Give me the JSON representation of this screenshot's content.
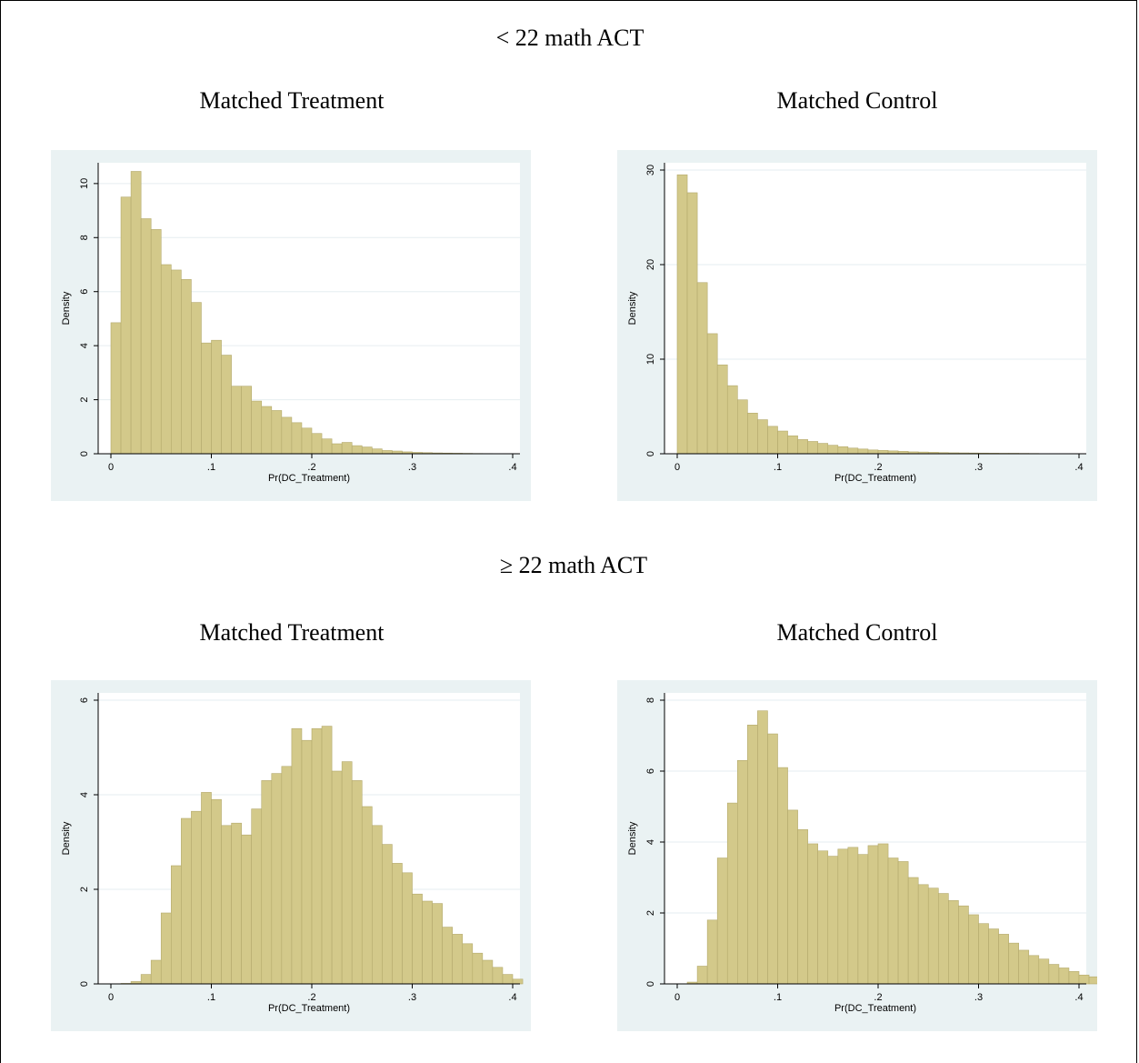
{
  "sections": [
    {
      "title": "< 22 math ACT",
      "panel_titles": [
        "Matched Treatment",
        "Matched Control"
      ]
    },
    {
      "title": "≥ 22 math ACT",
      "panel_titles": [
        "Matched Treatment",
        "Matched Control"
      ]
    }
  ],
  "colors": {
    "bar_fill": "#d3c98a",
    "bar_stroke": "#b3a96c",
    "panel_background": "#eaf2f3",
    "plot_background": "#ffffff",
    "gridline": "#e6eef0"
  },
  "chart_data": [
    {
      "type": "bar",
      "subtype": "histogram",
      "title": "Matched Treatment",
      "xlabel": "Pr(DC_Treatment)",
      "ylabel": "Density",
      "xlim": [
        0,
        0.4
      ],
      "ylim": [
        0,
        10.5
      ],
      "xticks": [
        0,
        0.1,
        0.2,
        0.3,
        0.4
      ],
      "xtick_labels": [
        "0",
        ".1",
        ".2",
        ".3",
        ".4"
      ],
      "yticks": [
        0,
        2,
        4,
        6,
        8,
        10
      ],
      "ytick_labels": [
        "0",
        "2",
        "4",
        "6",
        "8",
        "10"
      ],
      "grid": true,
      "bin_start": 0,
      "bin_width": 0.01,
      "values": [
        4.85,
        9.5,
        10.45,
        8.7,
        8.3,
        7.0,
        6.8,
        6.45,
        5.6,
        4.1,
        4.2,
        3.65,
        2.5,
        2.5,
        1.95,
        1.75,
        1.6,
        1.35,
        1.15,
        0.95,
        0.75,
        0.55,
        0.37,
        0.42,
        0.3,
        0.25,
        0.18,
        0.12,
        0.1,
        0.07,
        0.05,
        0.04,
        0.03,
        0.025,
        0.02,
        0.015,
        0.01,
        0.008,
        0.005
      ]
    },
    {
      "type": "bar",
      "subtype": "histogram",
      "title": "Matched Control",
      "xlabel": "Pr(DC_Treatment)",
      "ylabel": "Density",
      "xlim": [
        0,
        0.4
      ],
      "ylim": [
        0,
        30
      ],
      "xticks": [
        0,
        0.1,
        0.2,
        0.3,
        0.4
      ],
      "xtick_labels": [
        "0",
        ".1",
        ".2",
        ".3",
        ".4"
      ],
      "yticks": [
        0,
        10,
        20,
        30
      ],
      "ytick_labels": [
        "0",
        "10",
        "20",
        "30"
      ],
      "grid": true,
      "bin_start": 0,
      "bin_width": 0.01,
      "values": [
        29.5,
        27.6,
        18.1,
        12.7,
        9.4,
        7.2,
        5.7,
        4.3,
        3.6,
        2.9,
        2.4,
        1.9,
        1.5,
        1.3,
        1.1,
        0.9,
        0.75,
        0.6,
        0.5,
        0.4,
        0.35,
        0.3,
        0.25,
        0.2,
        0.18,
        0.15,
        0.12,
        0.1,
        0.09,
        0.08,
        0.07,
        0.06,
        0.05,
        0.05,
        0.04,
        0.03
      ]
    },
    {
      "type": "bar",
      "subtype": "histogram",
      "title": "Matched Treatment",
      "xlabel": "Pr(DC_Treatment)",
      "ylabel": "Density",
      "xlim": [
        0,
        0.4
      ],
      "ylim": [
        0,
        6
      ],
      "xticks": [
        0,
        0.1,
        0.2,
        0.3,
        0.4
      ],
      "xtick_labels": [
        "0",
        ".1",
        ".2",
        ".3",
        ".4"
      ],
      "yticks": [
        0,
        2,
        4,
        6
      ],
      "ytick_labels": [
        "0",
        "2",
        "4",
        "6"
      ],
      "grid": true,
      "bin_start": 0.01,
      "bin_width": 0.01,
      "values": [
        0.01,
        0.05,
        0.2,
        0.5,
        1.5,
        2.5,
        3.5,
        3.65,
        4.05,
        3.9,
        3.35,
        3.4,
        3.15,
        3.7,
        4.3,
        4.45,
        4.6,
        5.4,
        5.15,
        5.4,
        5.45,
        4.5,
        4.7,
        4.3,
        3.75,
        3.35,
        2.95,
        2.55,
        2.35,
        1.9,
        1.75,
        1.7,
        1.2,
        1.05,
        0.85,
        0.65,
        0.5,
        0.35,
        0.2,
        0.1
      ]
    },
    {
      "type": "bar",
      "subtype": "histogram",
      "title": "Matched Control",
      "xlabel": "Pr(DC_Treatment)",
      "ylabel": "Density",
      "xlim": [
        0,
        0.4
      ],
      "ylim": [
        0,
        8
      ],
      "xticks": [
        0,
        0.1,
        0.2,
        0.3,
        0.4
      ],
      "xtick_labels": [
        "0",
        ".1",
        ".2",
        ".3",
        ".4"
      ],
      "yticks": [
        0,
        2,
        4,
        6,
        8
      ],
      "ytick_labels": [
        "0",
        "2",
        "4",
        "6",
        "8"
      ],
      "grid": true,
      "bin_start": 0.01,
      "bin_width": 0.01,
      "values": [
        0.05,
        0.5,
        1.8,
        3.55,
        5.1,
        6.3,
        7.3,
        7.7,
        7.05,
        6.1,
        4.9,
        4.35,
        3.95,
        3.75,
        3.6,
        3.8,
        3.85,
        3.65,
        3.9,
        3.95,
        3.55,
        3.45,
        3.0,
        2.8,
        2.7,
        2.55,
        2.35,
        2.2,
        1.95,
        1.7,
        1.55,
        1.4,
        1.15,
        0.95,
        0.8,
        0.7,
        0.55,
        0.45,
        0.35,
        0.25,
        0.2,
        0.1,
        0.05
      ]
    }
  ]
}
